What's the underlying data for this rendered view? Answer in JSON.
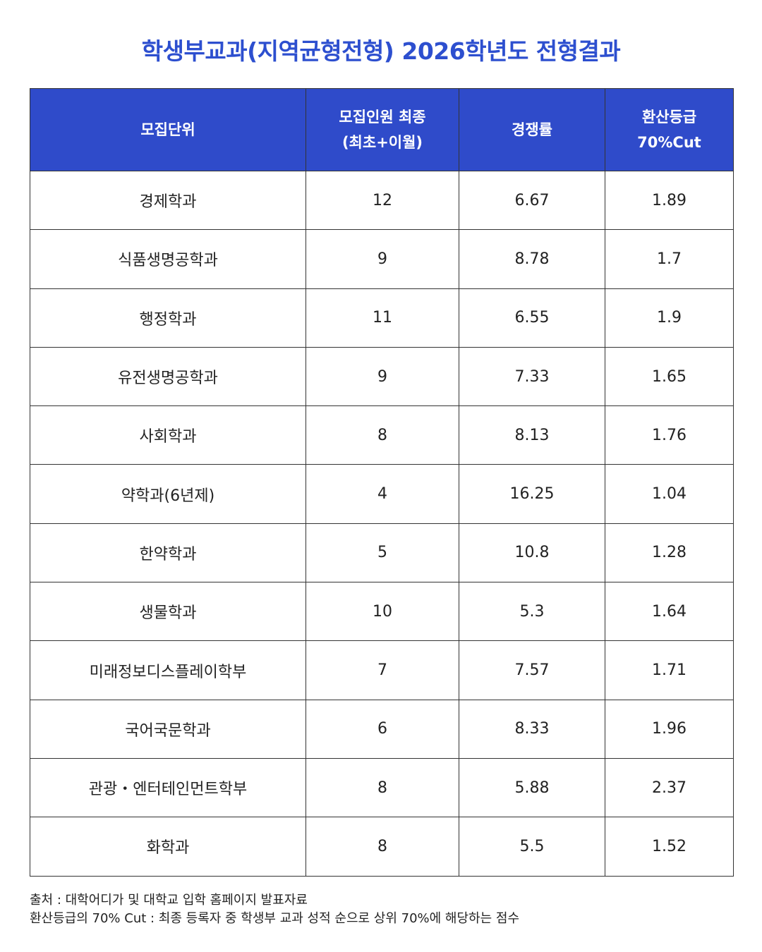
{
  "header": {
    "title": "학생부교과(지역균형전형) 2026학년도 전형결과"
  },
  "table": {
    "columns": [
      [
        "모집단위"
      ],
      [
        "모집인원 최종",
        "(최초+이월)"
      ],
      [
        "경쟁률"
      ],
      [
        "환산등급",
        "70%Cut"
      ]
    ],
    "rows": [
      [
        "경제학과",
        "12",
        "6.67",
        "1.89"
      ],
      [
        "식품생명공학과",
        "9",
        "8.78",
        "1.7"
      ],
      [
        "행정학과",
        "11",
        "6.55",
        "1.9"
      ],
      [
        "유전생명공학과",
        "9",
        "7.33",
        "1.65"
      ],
      [
        "사회학과",
        "8",
        "8.13",
        "1.76"
      ],
      [
        "약학과(6년제)",
        "4",
        "16.25",
        "1.04"
      ],
      [
        "한약학과",
        "5",
        "10.8",
        "1.28"
      ],
      [
        "생물학과",
        "10",
        "5.3",
        "1.64"
      ],
      [
        "미래정보디스플레이학부",
        "7",
        "7.57",
        "1.71"
      ],
      [
        "국어국문학과",
        "6",
        "8.33",
        "1.96"
      ],
      [
        "관광・엔터테인먼트학부",
        "8",
        "5.88",
        "2.37"
      ],
      [
        "화학과",
        "8",
        "5.5",
        "1.52"
      ]
    ]
  },
  "footnotes": [
    "출처 : 대학어디가 및 대학교 입학 홈페이지 발표자료",
    "환산등급의 70% Cut : 최종 등록자 중 학생부 교과 성적 순으로 상위 70%에 해당하는 점수"
  ]
}
